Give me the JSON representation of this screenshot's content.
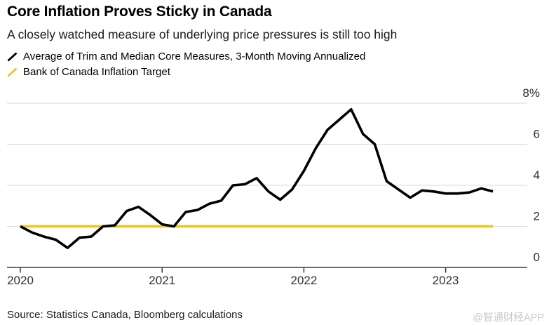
{
  "header": {
    "title": "Core Inflation Proves Sticky in Canada",
    "subtitle": "A closely watched measure of underlying price pressures is still too high"
  },
  "legend": [
    {
      "label": "Average of Trim and Median Core Measures, 3-Month Moving Annualized",
      "color": "#000000"
    },
    {
      "label": "Bank of Canada Inflation Target",
      "color": "#F2C318"
    }
  ],
  "footer": {
    "source": "Source: Statistics Canada, Bloomberg calculations",
    "watermark": "@智通财经APP"
  },
  "chart_data": {
    "type": "line",
    "title": "Core Inflation Proves Sticky in Canada",
    "subtitle": "A closely watched measure of underlying price pressures is still too high",
    "x": [
      "2020-01",
      "2020-02",
      "2020-03",
      "2020-04",
      "2020-05",
      "2020-06",
      "2020-07",
      "2020-08",
      "2020-09",
      "2020-10",
      "2020-11",
      "2020-12",
      "2021-01",
      "2021-02",
      "2021-03",
      "2021-04",
      "2021-05",
      "2021-06",
      "2021-07",
      "2021-08",
      "2021-09",
      "2021-10",
      "2021-11",
      "2021-12",
      "2022-01",
      "2022-02",
      "2022-03",
      "2022-04",
      "2022-05",
      "2022-06",
      "2022-07",
      "2022-08",
      "2022-09",
      "2022-10",
      "2022-11",
      "2022-12",
      "2023-01",
      "2023-02",
      "2023-03",
      "2023-04",
      "2023-05"
    ],
    "series": [
      {
        "name": "Average of Trim and Median Core Measures, 3-Month Moving Annualized",
        "color": "#000000",
        "values": [
          2.0,
          1.7,
          1.5,
          1.35,
          0.95,
          1.45,
          1.5,
          2.0,
          2.05,
          2.75,
          2.95,
          2.55,
          2.1,
          2.0,
          2.7,
          2.8,
          3.1,
          3.25,
          4.0,
          4.05,
          4.35,
          3.7,
          3.3,
          3.8,
          4.7,
          5.8,
          6.7,
          7.2,
          7.7,
          6.5,
          6.0,
          4.2,
          3.8,
          3.4,
          3.75,
          3.7,
          3.6,
          3.6,
          3.65,
          3.85,
          3.7
        ]
      },
      {
        "name": "Bank of Canada Inflation Target",
        "color": "#F2C318",
        "type": "constant",
        "value": 2.0
      }
    ],
    "ylim": [
      0,
      8
    ],
    "yticks": [
      {
        "value": 0,
        "label": "0"
      },
      {
        "value": 2,
        "label": "2"
      },
      {
        "value": 4,
        "label": "4"
      },
      {
        "value": 6,
        "label": "6"
      },
      {
        "value": 8,
        "label": "8%"
      }
    ],
    "xticks": [
      {
        "index": 0,
        "label": "2020"
      },
      {
        "index": 12,
        "label": "2021"
      },
      {
        "index": 24,
        "label": "2022"
      },
      {
        "index": 36,
        "label": "2023"
      }
    ],
    "grid": "horizontal",
    "legend_position": "top-left",
    "colors": {
      "grid": "#d9d9d9",
      "axis": "#3b3b3b",
      "label": "#2f2f2f"
    }
  }
}
